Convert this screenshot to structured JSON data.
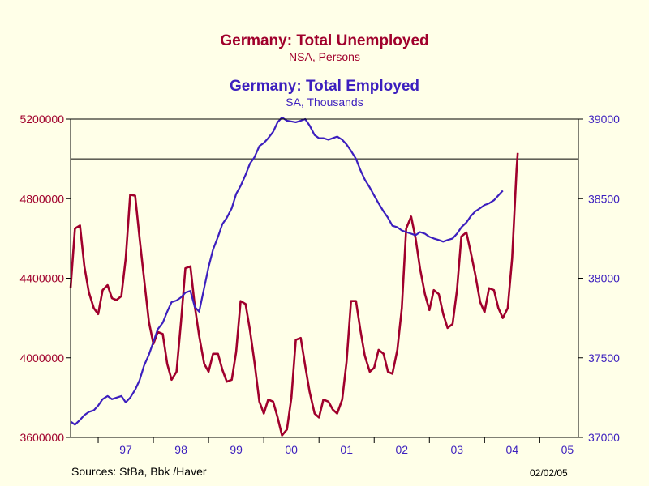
{
  "header": {
    "title1": "Germany: Total Unemployed",
    "subtitle1": "NSA, Persons",
    "title2": "Germany: Total Employed",
    "subtitle2": "SA, Thousands",
    "color1": "#A0002C",
    "color2": "#3C1FBE"
  },
  "footer": {
    "sources": "Sources:  StBa, Bbk /Haver",
    "date": "02/02/05"
  },
  "chart_data": {
    "type": "line",
    "background": "#FFFFE8",
    "grid": false,
    "reference_line_left": 5000000,
    "x_axis": {
      "range": [
        1996.5,
        2005.7
      ],
      "tick_labels": [
        "97",
        "98",
        "99",
        "00",
        "01",
        "02",
        "03",
        "04",
        "05"
      ],
      "label_positions": [
        1997.5,
        1998.5,
        1999.5,
        2000.5,
        2001.5,
        2002.5,
        2003.5,
        2004.5,
        2005.5
      ]
    },
    "y_left": {
      "range": [
        3600000,
        5200000
      ],
      "ticks": [
        3600000,
        4000000,
        4400000,
        4800000,
        5200000
      ],
      "tick_labels": [
        "3600000",
        "4000000",
        "4400000",
        "4800000",
        "5200000"
      ]
    },
    "y_right": {
      "range": [
        37000,
        39000
      ],
      "ticks": [
        37000,
        37500,
        38000,
        38500,
        39000
      ],
      "tick_labels": [
        "37000",
        "37500",
        "38000",
        "38500",
        "39000"
      ]
    },
    "series": [
      {
        "name": "Germany: Total Unemployed",
        "axis": "left",
        "color": "#A0002C",
        "points": [
          [
            1996.5,
            4350000
          ],
          [
            1996.58,
            4650000
          ],
          [
            1996.67,
            4665000
          ],
          [
            1996.75,
            4460000
          ],
          [
            1996.83,
            4330000
          ],
          [
            1996.92,
            4250000
          ],
          [
            1997.0,
            4220000
          ],
          [
            1997.08,
            4340000
          ],
          [
            1997.17,
            4365000
          ],
          [
            1997.25,
            4300000
          ],
          [
            1997.33,
            4290000
          ],
          [
            1997.42,
            4310000
          ],
          [
            1997.5,
            4500000
          ],
          [
            1997.58,
            4820000
          ],
          [
            1997.67,
            4815000
          ],
          [
            1997.75,
            4600000
          ],
          [
            1997.83,
            4400000
          ],
          [
            1997.92,
            4180000
          ],
          [
            1998.0,
            4070000
          ],
          [
            1998.08,
            4130000
          ],
          [
            1998.17,
            4120000
          ],
          [
            1998.25,
            3970000
          ],
          [
            1998.33,
            3890000
          ],
          [
            1998.42,
            3930000
          ],
          [
            1998.5,
            4180000
          ],
          [
            1998.58,
            4450000
          ],
          [
            1998.67,
            4460000
          ],
          [
            1998.75,
            4260000
          ],
          [
            1998.83,
            4110000
          ],
          [
            1998.92,
            3970000
          ],
          [
            1999.0,
            3930000
          ],
          [
            1999.08,
            4020000
          ],
          [
            1999.17,
            4020000
          ],
          [
            1999.25,
            3940000
          ],
          [
            1999.33,
            3880000
          ],
          [
            1999.42,
            3890000
          ],
          [
            1999.5,
            4030000
          ],
          [
            1999.58,
            4285000
          ],
          [
            1999.67,
            4270000
          ],
          [
            1999.75,
            4140000
          ],
          [
            1999.83,
            3980000
          ],
          [
            1999.92,
            3780000
          ],
          [
            2000.0,
            3720000
          ],
          [
            2000.08,
            3790000
          ],
          [
            2000.17,
            3780000
          ],
          [
            2000.25,
            3700000
          ],
          [
            2000.33,
            3610000
          ],
          [
            2000.42,
            3640000
          ],
          [
            2000.5,
            3800000
          ],
          [
            2000.58,
            4090000
          ],
          [
            2000.67,
            4100000
          ],
          [
            2000.75,
            3960000
          ],
          [
            2000.83,
            3830000
          ],
          [
            2000.92,
            3720000
          ],
          [
            2001.0,
            3700000
          ],
          [
            2001.08,
            3790000
          ],
          [
            2001.17,
            3780000
          ],
          [
            2001.25,
            3740000
          ],
          [
            2001.33,
            3720000
          ],
          [
            2001.42,
            3790000
          ],
          [
            2001.5,
            3980000
          ],
          [
            2001.58,
            4285000
          ],
          [
            2001.67,
            4285000
          ],
          [
            2001.75,
            4140000
          ],
          [
            2001.83,
            4010000
          ],
          [
            2001.92,
            3930000
          ],
          [
            2002.0,
            3950000
          ],
          [
            2002.08,
            4040000
          ],
          [
            2002.17,
            4020000
          ],
          [
            2002.25,
            3930000
          ],
          [
            2002.33,
            3920000
          ],
          [
            2002.42,
            4040000
          ],
          [
            2002.5,
            4250000
          ],
          [
            2002.58,
            4650000
          ],
          [
            2002.67,
            4710000
          ],
          [
            2002.75,
            4600000
          ],
          [
            2002.83,
            4450000
          ],
          [
            2002.92,
            4320000
          ],
          [
            2003.0,
            4240000
          ],
          [
            2003.08,
            4340000
          ],
          [
            2003.17,
            4320000
          ],
          [
            2003.25,
            4220000
          ],
          [
            2003.33,
            4150000
          ],
          [
            2003.42,
            4170000
          ],
          [
            2003.5,
            4340000
          ],
          [
            2003.58,
            4610000
          ],
          [
            2003.67,
            4630000
          ],
          [
            2003.75,
            4530000
          ],
          [
            2003.83,
            4420000
          ],
          [
            2003.92,
            4280000
          ],
          [
            2004.0,
            4230000
          ],
          [
            2004.08,
            4350000
          ],
          [
            2004.17,
            4340000
          ],
          [
            2004.25,
            4250000
          ],
          [
            2004.33,
            4200000
          ],
          [
            2004.42,
            4250000
          ],
          [
            2004.5,
            4500000
          ],
          [
            2004.58,
            4950000
          ],
          [
            2004.6,
            5030000
          ]
        ]
      },
      {
        "name": "Germany: Total Employed",
        "axis": "right",
        "color": "#3C1FBE",
        "points": [
          [
            1996.5,
            37100
          ],
          [
            1996.58,
            37080
          ],
          [
            1996.67,
            37110
          ],
          [
            1996.75,
            37140
          ],
          [
            1996.83,
            37160
          ],
          [
            1996.92,
            37170
          ],
          [
            1997.0,
            37200
          ],
          [
            1997.08,
            37240
          ],
          [
            1997.17,
            37260
          ],
          [
            1997.25,
            37240
          ],
          [
            1997.33,
            37250
          ],
          [
            1997.42,
            37260
          ],
          [
            1997.5,
            37220
          ],
          [
            1997.58,
            37250
          ],
          [
            1997.67,
            37300
          ],
          [
            1997.75,
            37360
          ],
          [
            1997.83,
            37450
          ],
          [
            1997.92,
            37520
          ],
          [
            1998.0,
            37600
          ],
          [
            1998.08,
            37680
          ],
          [
            1998.17,
            37720
          ],
          [
            1998.25,
            37790
          ],
          [
            1998.33,
            37850
          ],
          [
            1998.42,
            37860
          ],
          [
            1998.5,
            37880
          ],
          [
            1998.58,
            37910
          ],
          [
            1998.67,
            37920
          ],
          [
            1998.75,
            37820
          ],
          [
            1998.83,
            37790
          ],
          [
            1998.92,
            37940
          ],
          [
            1999.0,
            38070
          ],
          [
            1999.08,
            38180
          ],
          [
            1999.17,
            38260
          ],
          [
            1999.25,
            38340
          ],
          [
            1999.33,
            38380
          ],
          [
            1999.42,
            38440
          ],
          [
            1999.5,
            38530
          ],
          [
            1999.58,
            38580
          ],
          [
            1999.67,
            38650
          ],
          [
            1999.75,
            38720
          ],
          [
            1999.83,
            38760
          ],
          [
            1999.92,
            38830
          ],
          [
            2000.0,
            38850
          ],
          [
            2000.08,
            38880
          ],
          [
            2000.17,
            38920
          ],
          [
            2000.25,
            38980
          ],
          [
            2000.33,
            39010
          ],
          [
            2000.42,
            38990
          ],
          [
            2000.5,
            38985
          ],
          [
            2000.58,
            38980
          ],
          [
            2000.67,
            38990
          ],
          [
            2000.75,
            39000
          ],
          [
            2000.83,
            38960
          ],
          [
            2000.92,
            38900
          ],
          [
            2001.0,
            38880
          ],
          [
            2001.08,
            38880
          ],
          [
            2001.17,
            38870
          ],
          [
            2001.25,
            38880
          ],
          [
            2001.33,
            38890
          ],
          [
            2001.42,
            38870
          ],
          [
            2001.5,
            38840
          ],
          [
            2001.58,
            38800
          ],
          [
            2001.67,
            38750
          ],
          [
            2001.75,
            38680
          ],
          [
            2001.83,
            38620
          ],
          [
            2001.92,
            38570
          ],
          [
            2002.0,
            38520
          ],
          [
            2002.08,
            38470
          ],
          [
            2002.17,
            38420
          ],
          [
            2002.25,
            38380
          ],
          [
            2002.33,
            38330
          ],
          [
            2002.42,
            38320
          ],
          [
            2002.5,
            38300
          ],
          [
            2002.58,
            38290
          ],
          [
            2002.67,
            38280
          ],
          [
            2002.75,
            38270
          ],
          [
            2002.83,
            38290
          ],
          [
            2002.92,
            38280
          ],
          [
            2003.0,
            38260
          ],
          [
            2003.08,
            38250
          ],
          [
            2003.17,
            38240
          ],
          [
            2003.25,
            38230
          ],
          [
            2003.33,
            38240
          ],
          [
            2003.42,
            38250
          ],
          [
            2003.5,
            38280
          ],
          [
            2003.58,
            38320
          ],
          [
            2003.67,
            38350
          ],
          [
            2003.75,
            38390
          ],
          [
            2003.83,
            38420
          ],
          [
            2003.92,
            38440
          ],
          [
            2004.0,
            38460
          ],
          [
            2004.08,
            38470
          ],
          [
            2004.17,
            38490
          ],
          [
            2004.25,
            38520
          ],
          [
            2004.33,
            38550
          ]
        ]
      }
    ]
  }
}
